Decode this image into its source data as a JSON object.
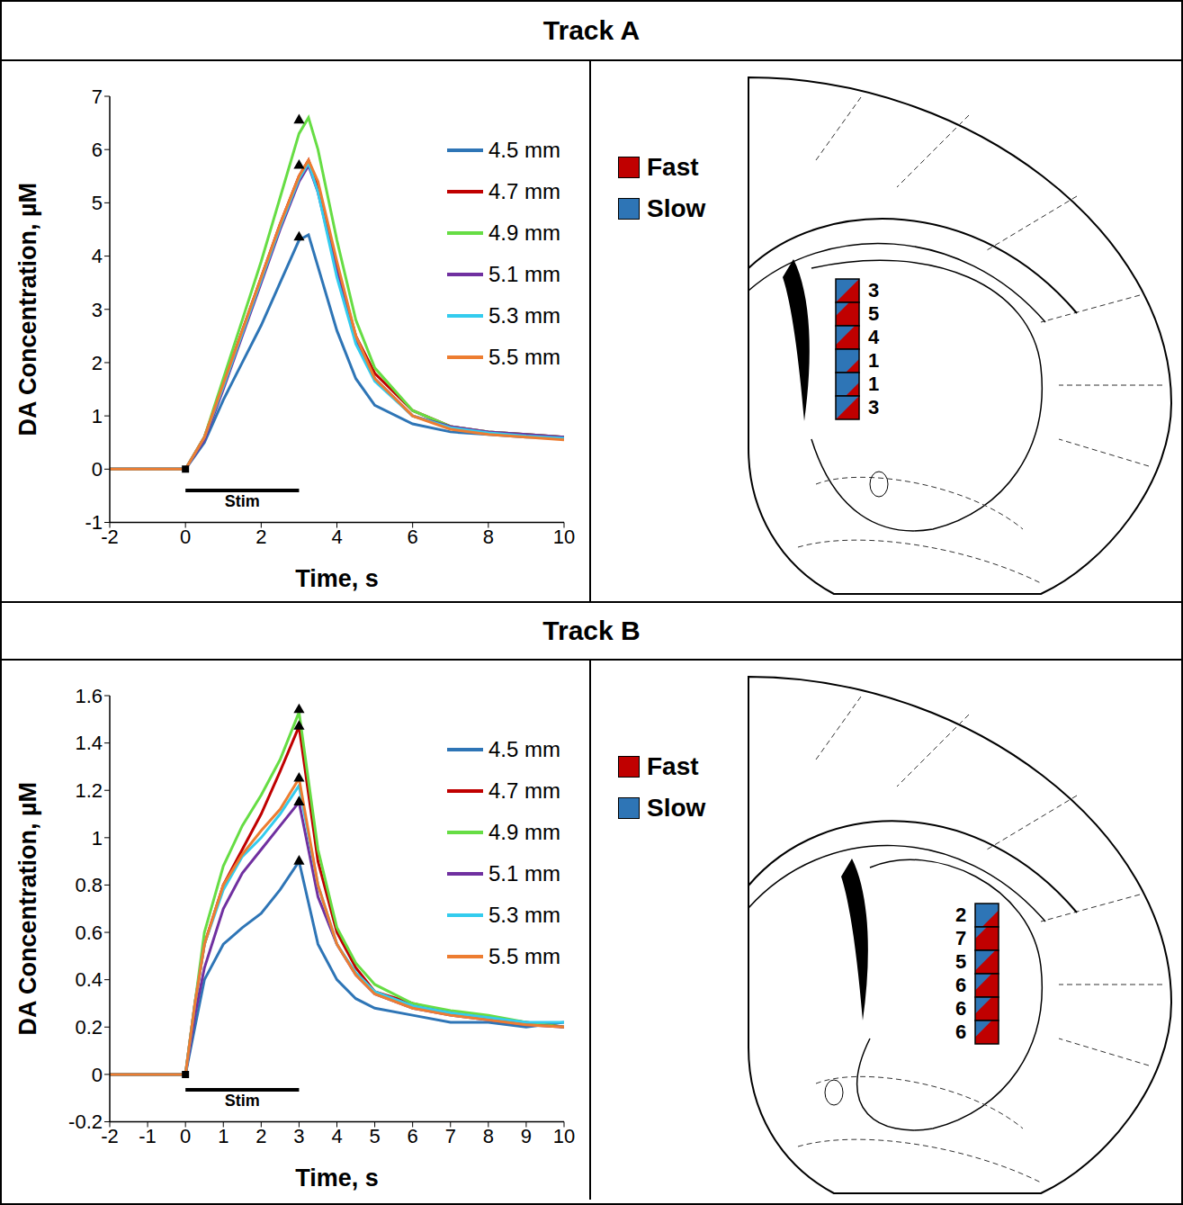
{
  "chart_data": [
    {
      "type": "line",
      "title": "Track A",
      "x_label": "Time, s",
      "y_label": "DA Concentration, µM",
      "xlim": [
        -2,
        10
      ],
      "xticks": [
        -2,
        0,
        2,
        4,
        6,
        8,
        10
      ],
      "ylim": [
        -1,
        7
      ],
      "yticks": [
        -1,
        0,
        1,
        2,
        3,
        4,
        5,
        6,
        7
      ],
      "legend": "upper right",
      "grid": false,
      "stim": {
        "label": "Stim",
        "start": 0,
        "end": 3
      },
      "onset": {
        "x": 0,
        "y": 0,
        "marker": "square"
      },
      "peaks": {
        "marker": "triangle",
        "points": [
          {
            "x": 3,
            "y": 6.55
          },
          {
            "x": 3,
            "y": 5.7
          },
          {
            "x": 3,
            "y": 4.35
          }
        ]
      },
      "x": [
        -2,
        -1,
        0,
        0.5,
        1,
        1.5,
        2,
        2.5,
        3,
        3.25,
        3.5,
        4,
        4.5,
        5,
        6,
        7,
        8,
        9,
        10
      ],
      "series": [
        {
          "name": "4.5 mm",
          "color": "#2e75b6",
          "values": [
            0,
            0,
            0,
            0.5,
            1.3,
            2.0,
            2.7,
            3.5,
            4.3,
            4.4,
            3.8,
            2.6,
            1.7,
            1.2,
            0.85,
            0.7,
            0.65,
            0.6,
            0.6
          ]
        },
        {
          "name": "4.7 mm",
          "color": "#c00000",
          "values": [
            0,
            0,
            0,
            0.6,
            1.6,
            2.6,
            3.6,
            4.6,
            5.5,
            5.8,
            5.3,
            3.8,
            2.5,
            1.8,
            1.1,
            0.8,
            0.7,
            0.65,
            0.6
          ]
        },
        {
          "name": "4.9 mm",
          "color": "#66dd44",
          "values": [
            0,
            0,
            0,
            0.6,
            1.7,
            2.8,
            3.9,
            5.1,
            6.3,
            6.6,
            6.0,
            4.3,
            2.8,
            1.9,
            1.1,
            0.8,
            0.7,
            0.65,
            0.6
          ]
        },
        {
          "name": "5.1 mm",
          "color": "#7030a0",
          "values": [
            0,
            0,
            0,
            0.55,
            1.5,
            2.5,
            3.5,
            4.5,
            5.4,
            5.7,
            5.2,
            3.7,
            2.4,
            1.7,
            1.0,
            0.8,
            0.7,
            0.65,
            0.6
          ]
        },
        {
          "name": "5.3 mm",
          "color": "#33ccee",
          "values": [
            0,
            0,
            0,
            0.6,
            1.55,
            2.55,
            3.55,
            4.55,
            5.45,
            5.75,
            5.2,
            3.6,
            2.35,
            1.65,
            1.0,
            0.78,
            0.68,
            0.62,
            0.58
          ]
        },
        {
          "name": "5.5 mm",
          "color": "#ed7d31",
          "values": [
            0,
            0,
            0,
            0.6,
            1.6,
            2.6,
            3.6,
            4.6,
            5.5,
            5.8,
            5.4,
            3.9,
            2.5,
            1.7,
            1.0,
            0.75,
            0.65,
            0.6,
            0.55
          ]
        }
      ]
    },
    {
      "type": "line",
      "title": "Track B",
      "x_label": "Time, s",
      "y_label": "DA Concentration, µM",
      "xlim": [
        -2,
        10
      ],
      "xticks": [
        -2,
        -1,
        0,
        1,
        2,
        3,
        4,
        5,
        6,
        7,
        8,
        9,
        10
      ],
      "ylim": [
        -0.2,
        1.6
      ],
      "yticks": [
        -0.2,
        0,
        0.2,
        0.4,
        0.6,
        0.8,
        1,
        1.2,
        1.4,
        1.6
      ],
      "legend": "upper right",
      "grid": false,
      "stim": {
        "label": "Stim",
        "start": 0,
        "end": 3
      },
      "onset": {
        "x": 0,
        "y": 0,
        "marker": "square"
      },
      "peaks": {
        "marker": "triangle",
        "points": [
          {
            "x": 3,
            "y": 1.54
          },
          {
            "x": 3,
            "y": 1.47
          },
          {
            "x": 3,
            "y": 1.25
          },
          {
            "x": 3,
            "y": 1.15
          },
          {
            "x": 3,
            "y": 0.9
          }
        ]
      },
      "x": [
        -2,
        0,
        0.25,
        0.5,
        1,
        1.5,
        2,
        2.5,
        3,
        3.5,
        4,
        4.5,
        5,
        6,
        7,
        8,
        9,
        10
      ],
      "series": [
        {
          "name": "4.5 mm",
          "color": "#2e75b6",
          "values": [
            0,
            0,
            0.2,
            0.4,
            0.55,
            0.62,
            0.68,
            0.78,
            0.9,
            0.55,
            0.4,
            0.32,
            0.28,
            0.25,
            0.22,
            0.22,
            0.2,
            0.22
          ]
        },
        {
          "name": "4.7 mm",
          "color": "#c00000",
          "values": [
            0,
            0,
            0.3,
            0.55,
            0.8,
            0.95,
            1.1,
            1.28,
            1.47,
            0.9,
            0.6,
            0.45,
            0.35,
            0.3,
            0.26,
            0.24,
            0.22,
            0.2
          ]
        },
        {
          "name": "4.9 mm",
          "color": "#66dd44",
          "values": [
            0,
            0,
            0.3,
            0.6,
            0.88,
            1.05,
            1.18,
            1.33,
            1.53,
            0.95,
            0.62,
            0.47,
            0.38,
            0.3,
            0.27,
            0.25,
            0.22,
            0.2
          ]
        },
        {
          "name": "5.1 mm",
          "color": "#7030a0",
          "values": [
            0,
            0,
            0.25,
            0.45,
            0.7,
            0.85,
            0.95,
            1.05,
            1.15,
            0.75,
            0.55,
            0.42,
            0.34,
            0.28,
            0.25,
            0.23,
            0.21,
            0.2
          ]
        },
        {
          "name": "5.3 mm",
          "color": "#33ccee",
          "values": [
            0,
            0,
            0.3,
            0.55,
            0.78,
            0.92,
            1.0,
            1.1,
            1.22,
            0.8,
            0.55,
            0.43,
            0.35,
            0.29,
            0.26,
            0.24,
            0.22,
            0.22
          ]
        },
        {
          "name": "5.5 mm",
          "color": "#ed7d31",
          "values": [
            0,
            0,
            0.3,
            0.55,
            0.8,
            0.93,
            1.03,
            1.12,
            1.25,
            0.8,
            0.55,
            0.42,
            0.34,
            0.28,
            0.25,
            0.23,
            0.21,
            0.2
          ]
        }
      ]
    }
  ],
  "diagrams": [
    {
      "key": [
        {
          "label": "Fast",
          "color": "#c00000"
        },
        {
          "label": "Slow",
          "color": "#2e75b6"
        }
      ],
      "counts": [
        3,
        5,
        4,
        1,
        1,
        3
      ]
    },
    {
      "key": [
        {
          "label": "Fast",
          "color": "#c00000"
        },
        {
          "label": "Slow",
          "color": "#2e75b6"
        }
      ],
      "counts": [
        2,
        7,
        5,
        6,
        6,
        6
      ]
    }
  ]
}
